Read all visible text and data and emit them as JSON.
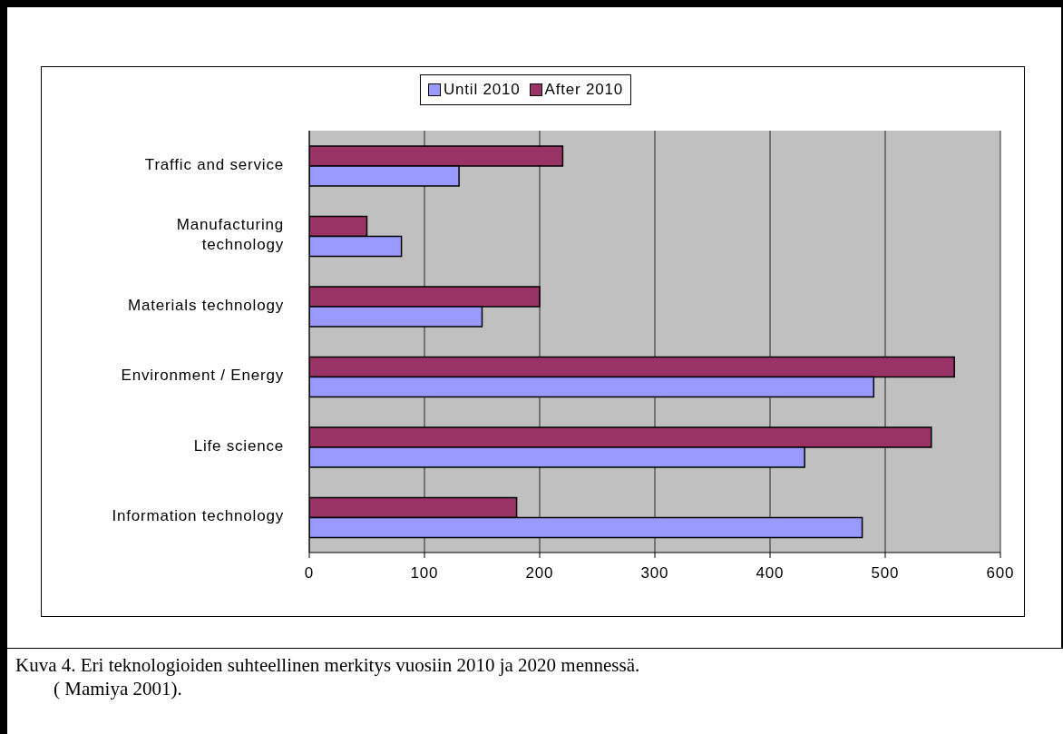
{
  "chart_data": {
    "type": "bar",
    "orientation": "horizontal",
    "categories": [
      "Traffic and service",
      "Manufacturing technology",
      "Materials technology",
      "Environment / Energy",
      "Life science",
      "Information technology"
    ],
    "series": [
      {
        "name": "Until 2010",
        "color": "#9999ff",
        "values": [
          130,
          80,
          150,
          490,
          430,
          480
        ]
      },
      {
        "name": "After 2010",
        "color": "#993366",
        "values": [
          220,
          50,
          200,
          560,
          540,
          180
        ]
      }
    ],
    "xlim": [
      0,
      600
    ],
    "xticks": [
      0,
      100,
      200,
      300,
      400,
      500,
      600
    ],
    "grid": "x",
    "legend": "top",
    "annotations": [
      "Kuva 4. Eri teknologioiden suhteellinen merkitys vuosiin 2010 ja 2020 mennessä.",
      "( Mamiya 2001)."
    ]
  }
}
